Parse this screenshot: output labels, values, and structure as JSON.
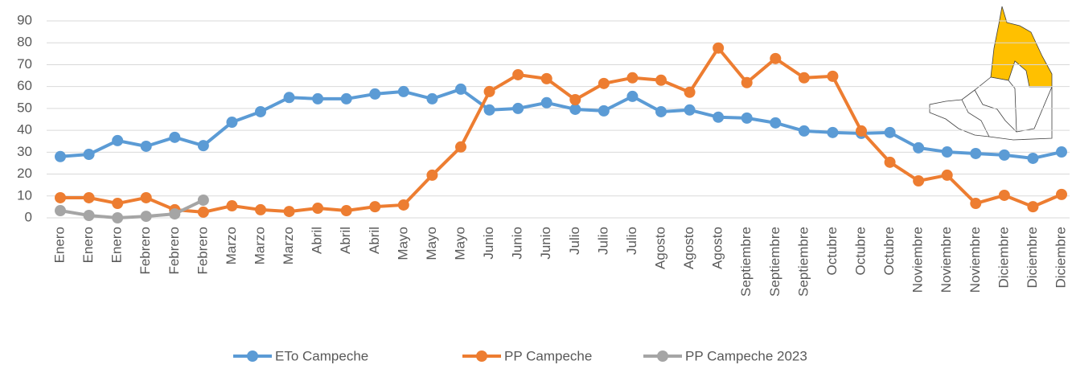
{
  "chart_data": {
    "type": "line",
    "categories": [
      "Enero",
      "Enero",
      "Enero",
      "Febrero",
      "Febrero",
      "Febrero",
      "Marzo",
      "Marzo",
      "Marzo",
      "Abril",
      "Abril",
      "Abril",
      "Mayo",
      "Mayo",
      "Mayo",
      "Junio",
      "Junio",
      "Junio",
      "Julio",
      "Julio",
      "Julio",
      "Agosto",
      "Agosto",
      "Agosto",
      "Septiembre",
      "Septiembre",
      "Septiembre",
      "Octubre",
      "Octubre",
      "Octubre",
      "Noviembre",
      "Noviembre",
      "Noviembre",
      "Diciembre",
      "Diciembre",
      "Diciembre"
    ],
    "series": [
      {
        "name": "ETo Campeche",
        "color": "#5b9bd5",
        "values": [
          28,
          29,
          35.3,
          32.7,
          36.8,
          33,
          43.7,
          48.5,
          55,
          54.4,
          54.4,
          56.6,
          57.7,
          54.4,
          58.8,
          49.3,
          50,
          52.6,
          49.6,
          48.9,
          55.5,
          48.5,
          49.3,
          46,
          45.6,
          43.4,
          39.7,
          39,
          38.6,
          39,
          32,
          30.1,
          29.4,
          28.7,
          27.2,
          30.1
        ]
      },
      {
        "name": "PP Campeche",
        "color": "#ed7d31",
        "values": [
          9.2,
          9.2,
          6.6,
          9.2,
          3.7,
          2.6,
          5.5,
          3.7,
          2.9,
          4.4,
          3.3,
          5.1,
          5.9,
          19.5,
          32.4,
          57.7,
          65.4,
          63.6,
          54,
          61.4,
          64,
          62.9,
          57.4,
          77.6,
          61.8,
          72.8,
          64,
          64.7,
          39.7,
          25.4,
          16.9,
          19.5,
          6.6,
          10.3,
          5.1,
          10.7
        ]
      },
      {
        "name": "PP Campeche 2023",
        "color": "#a5a5a5",
        "values": [
          3.3,
          1.1,
          0,
          0.7,
          1.8,
          8.1,
          null,
          null,
          null,
          null,
          null,
          null,
          null,
          null,
          null,
          null,
          null,
          null,
          null,
          null,
          null,
          null,
          null,
          null,
          null,
          null,
          null,
          null,
          null,
          null,
          null,
          null,
          null,
          null,
          null,
          null
        ]
      }
    ],
    "ylim": [
      0,
      90
    ],
    "yticks": [
      0,
      10,
      20,
      30,
      40,
      50,
      60,
      70,
      80,
      90
    ],
    "grid": true,
    "legend": "bottom"
  }
}
